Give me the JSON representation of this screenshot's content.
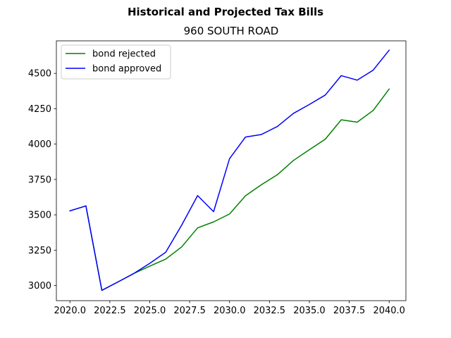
{
  "chart_data": {
    "type": "line",
    "suptitle": "Historical and Projected Tax Bills",
    "title": "960 SOUTH ROAD",
    "xlabel": "",
    "ylabel": "",
    "x": [
      2020,
      2021,
      2022,
      2023,
      2024,
      2025,
      2026,
      2027,
      2028,
      2029,
      2030,
      2031,
      2032,
      2033,
      2034,
      2035,
      2036,
      2037,
      2038,
      2039,
      2040
    ],
    "xlim": [
      2019.15,
      2041.05
    ],
    "ylim": [
      2893,
      4730
    ],
    "xticks": [
      2020.0,
      2022.5,
      2025.0,
      2027.5,
      2030.0,
      2032.5,
      2035.0,
      2037.5,
      2040.0
    ],
    "xtick_labels": [
      "2020.0",
      "2022.5",
      "2025.0",
      "2027.5",
      "2030.0",
      "2032.5",
      "2035.0",
      "2037.5",
      "2040.0"
    ],
    "yticks": [
      3000,
      3250,
      3500,
      3750,
      4000,
      4250,
      4500
    ],
    "ytick_labels": [
      "3000",
      "3250",
      "3500",
      "3750",
      "4000",
      "4250",
      "4500"
    ],
    "grid": false,
    "legend_position": "upper-left",
    "series": [
      {
        "name": "bond rejected",
        "color": "#008000",
        "values": [
          3528,
          3563,
          2966,
          3025,
          3085,
          3137,
          3187,
          3273,
          3408,
          3450,
          3506,
          3635,
          3713,
          3784,
          3884,
          3960,
          4035,
          4172,
          4155,
          4238,
          4389
        ]
      },
      {
        "name": "bond approved",
        "color": "#0000ff",
        "values": [
          3528,
          3563,
          2966,
          3025,
          3085,
          3157,
          3235,
          3427,
          3636,
          3522,
          3897,
          4050,
          4068,
          4125,
          4217,
          4280,
          4347,
          4484,
          4452,
          4523,
          4664
        ]
      }
    ]
  }
}
